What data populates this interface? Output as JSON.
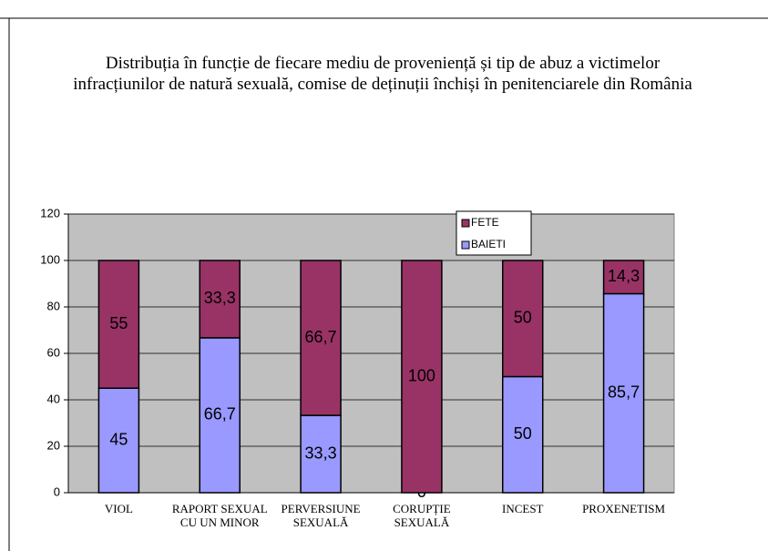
{
  "chart_data": {
    "type": "stacked_bar",
    "title": "Distribuția în funcție de fiecare mediu de proveniență și tip de abuz a victimelor infracțiunilor de natură sexuală, comise de deținuții închiși în penitenciarele din România",
    "categories": [
      "VIOL",
      "RAPORT SEXUAL CU UN MINOR",
      "PERVERSIUNE SEXUALĂ",
      "CORUPȚIE SEXUALĂ",
      "INCEST",
      "PROXENETISM"
    ],
    "series": [
      {
        "name": "BAIETI",
        "color": "#9999ff",
        "values": [
          45,
          66.7,
          33.3,
          0,
          50,
          85.7
        ],
        "value_labels": [
          "45",
          "66,7",
          "33,3",
          "0",
          "50",
          "85,7"
        ]
      },
      {
        "name": "FETE",
        "color": "#993366",
        "values": [
          55,
          33.3,
          66.7,
          100,
          50,
          14.3
        ],
        "value_labels": [
          "55",
          "33,3",
          "66,7",
          "100",
          "50",
          "14,3"
        ]
      }
    ],
    "ylim": [
      0,
      120
    ],
    "yticks": [
      0,
      20,
      40,
      60,
      80,
      100,
      120
    ],
    "grid": true,
    "legend": "top"
  }
}
